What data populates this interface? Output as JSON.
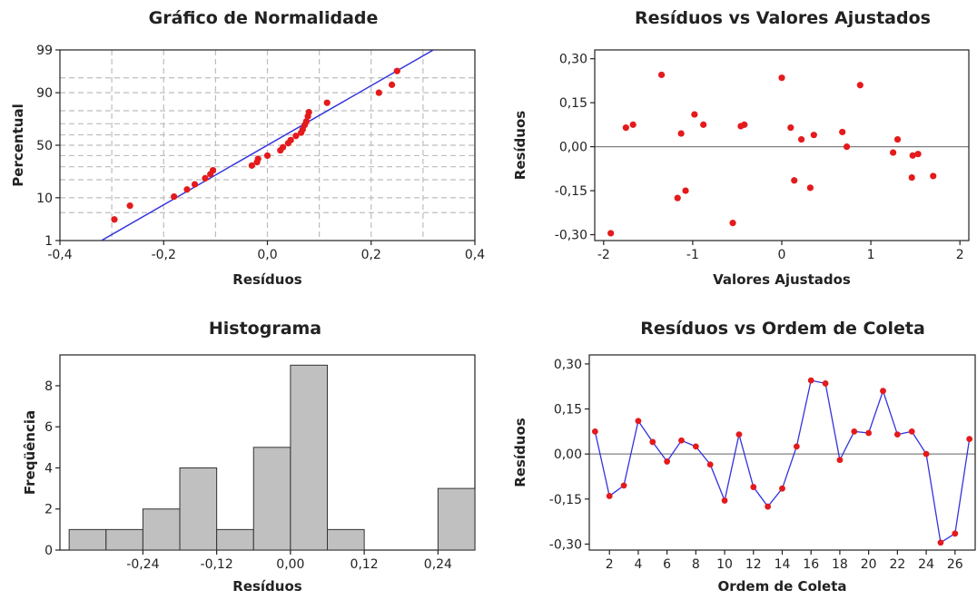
{
  "chart_data": [
    {
      "type": "scatter",
      "title": "Gráfico de Normalidade",
      "xlabel": "Resíduos",
      "ylabel": "Percentual",
      "xlim": [
        -0.4,
        0.4
      ],
      "x_ticks": [
        -0.4,
        -0.2,
        0.0,
        0.2,
        0.4
      ],
      "x_tick_labels": [
        "-0,4",
        "-0,2",
        "0,0",
        "0,2",
        "0,4"
      ],
      "x_grid": [
        -0.3,
        -0.2,
        -0.1,
        0.0,
        0.1,
        0.2,
        0.3
      ],
      "y_scale": "normal-probability",
      "y_ticks": [
        1,
        10,
        50,
        90,
        99
      ],
      "y_tick_labels": [
        "1",
        "10",
        "50",
        "90",
        "99"
      ],
      "y_grid": [
        1,
        5,
        10,
        20,
        30,
        40,
        50,
        60,
        70,
        80,
        90,
        95,
        99
      ],
      "grid": true,
      "fit_line": {
        "x": [
          -0.32,
          0.32
        ],
        "y": [
          1,
          99
        ]
      },
      "points": [
        {
          "x": -0.295,
          "y": 3.5
        },
        {
          "x": -0.265,
          "y": 7
        },
        {
          "x": -0.18,
          "y": 10.5
        },
        {
          "x": -0.155,
          "y": 14
        },
        {
          "x": -0.14,
          "y": 17
        },
        {
          "x": -0.12,
          "y": 21
        },
        {
          "x": -0.11,
          "y": 24
        },
        {
          "x": -0.105,
          "y": 27
        },
        {
          "x": -0.03,
          "y": 31
        },
        {
          "x": -0.02,
          "y": 34
        },
        {
          "x": -0.018,
          "y": 37
        },
        {
          "x": 0.0,
          "y": 40
        },
        {
          "x": 0.025,
          "y": 45
        },
        {
          "x": 0.03,
          "y": 48
        },
        {
          "x": 0.04,
          "y": 52
        },
        {
          "x": 0.045,
          "y": 55
        },
        {
          "x": 0.055,
          "y": 59
        },
        {
          "x": 0.065,
          "y": 62
        },
        {
          "x": 0.068,
          "y": 65
        },
        {
          "x": 0.072,
          "y": 69
        },
        {
          "x": 0.075,
          "y": 72
        },
        {
          "x": 0.078,
          "y": 76
        },
        {
          "x": 0.08,
          "y": 79
        },
        {
          "x": 0.115,
          "y": 85
        },
        {
          "x": 0.215,
          "y": 90
        },
        {
          "x": 0.24,
          "y": 93
        },
        {
          "x": 0.25,
          "y": 96.5
        }
      ]
    },
    {
      "type": "scatter",
      "title": "Resíduos vs Valores Ajustados",
      "xlabel": "Valores Ajustados",
      "ylabel": "Resíduos",
      "xlim": [
        -2.1,
        2.1
      ],
      "ylim": [
        -0.32,
        0.33
      ],
      "x_ticks": [
        -2,
        -1,
        0,
        1,
        2
      ],
      "x_tick_labels": [
        "-2",
        "-1",
        "0",
        "1",
        "2"
      ],
      "y_ticks": [
        -0.3,
        -0.15,
        0.0,
        0.15,
        0.3
      ],
      "y_tick_labels": [
        "-0,30",
        "-0,15",
        "0,00",
        "0,15",
        "0,30"
      ],
      "reference_line": 0,
      "points": [
        {
          "x": -1.92,
          "y": -0.295
        },
        {
          "x": -1.75,
          "y": 0.065
        },
        {
          "x": -1.67,
          "y": 0.075
        },
        {
          "x": -1.35,
          "y": 0.245
        },
        {
          "x": -0.98,
          "y": 0.11
        },
        {
          "x": -0.88,
          "y": 0.075
        },
        {
          "x": -1.13,
          "y": 0.045
        },
        {
          "x": -1.17,
          "y": -0.175
        },
        {
          "x": -1.08,
          "y": -0.15
        },
        {
          "x": -0.55,
          "y": -0.26
        },
        {
          "x": -0.46,
          "y": 0.07
        },
        {
          "x": -0.42,
          "y": 0.075
        },
        {
          "x": 0.0,
          "y": 0.235
        },
        {
          "x": 0.1,
          "y": 0.065
        },
        {
          "x": 0.14,
          "y": -0.115
        },
        {
          "x": 0.22,
          "y": 0.025
        },
        {
          "x": 0.32,
          "y": -0.14
        },
        {
          "x": 0.36,
          "y": 0.04
        },
        {
          "x": 0.68,
          "y": 0.05
        },
        {
          "x": 0.73,
          "y": 0.0
        },
        {
          "x": 0.88,
          "y": 0.21
        },
        {
          "x": 1.25,
          "y": -0.02
        },
        {
          "x": 1.3,
          "y": 0.025
        },
        {
          "x": 1.46,
          "y": -0.105
        },
        {
          "x": 1.47,
          "y": -0.03
        },
        {
          "x": 1.53,
          "y": -0.025
        },
        {
          "x": 1.7,
          "y": -0.1
        }
      ]
    },
    {
      "type": "bar",
      "title": "Histograma",
      "xlabel": "Resíduos",
      "ylabel": "Freqüência",
      "bin_width": 0.06,
      "bin_centers": [
        -0.33,
        -0.27,
        -0.21,
        -0.15,
        -0.09,
        -0.03,
        0.03,
        0.09,
        0.15,
        0.21,
        0.27
      ],
      "values": [
        1,
        1,
        2,
        4,
        1,
        5,
        9,
        1,
        0,
        0,
        3
      ],
      "xlim": [
        -0.375,
        0.3
      ],
      "ylim": [
        0,
        9.5
      ],
      "x_ticks": [
        -0.24,
        -0.12,
        0.0,
        0.12,
        0.24
      ],
      "x_tick_labels": [
        "-0,24",
        "-0,12",
        "0,00",
        "0,12",
        "0,24"
      ],
      "y_ticks": [
        0,
        2,
        4,
        6,
        8
      ],
      "y_tick_labels": [
        "0",
        "2",
        "4",
        "6",
        "8"
      ]
    },
    {
      "type": "line",
      "title": "Resíduos vs Ordem de Coleta",
      "xlabel": "Ordem de Coleta",
      "ylabel": "Resíduos",
      "xlim": [
        0.6,
        27.4
      ],
      "ylim": [
        -0.32,
        0.33
      ],
      "x_ticks": [
        2,
        4,
        6,
        8,
        10,
        12,
        14,
        16,
        18,
        20,
        22,
        24,
        26
      ],
      "x_tick_labels": [
        "2",
        "4",
        "6",
        "8",
        "10",
        "12",
        "14",
        "16",
        "18",
        "20",
        "22",
        "24",
        "26"
      ],
      "y_ticks": [
        -0.3,
        -0.15,
        0.0,
        0.15,
        0.3
      ],
      "y_tick_labels": [
        "-0,30",
        "-0,15",
        "0,00",
        "0,15",
        "0,30"
      ],
      "reference_line": 0,
      "x": [
        1,
        2,
        3,
        4,
        5,
        6,
        7,
        8,
        9,
        10,
        11,
        12,
        13,
        14,
        15,
        16,
        17,
        18,
        19,
        20,
        21,
        22,
        23,
        24,
        25,
        26,
        27
      ],
      "y": [
        0.075,
        -0.14,
        -0.105,
        0.11,
        0.04,
        -0.025,
        0.045,
        0.025,
        -0.035,
        -0.155,
        0.065,
        -0.11,
        -0.175,
        -0.115,
        0.025,
        0.245,
        0.235,
        -0.02,
        0.075,
        0.07,
        0.21,
        0.065,
        0.075,
        0.0,
        -0.295,
        -0.265,
        0.05
      ]
    }
  ],
  "colors": {
    "points": "#e41a1c",
    "fit_line": "#3333dd",
    "series_line": "#3333dd",
    "bars": "#c0c0c0",
    "grid": "#bdbdbd",
    "reference_line": "#808080",
    "axes": "#222222"
  }
}
